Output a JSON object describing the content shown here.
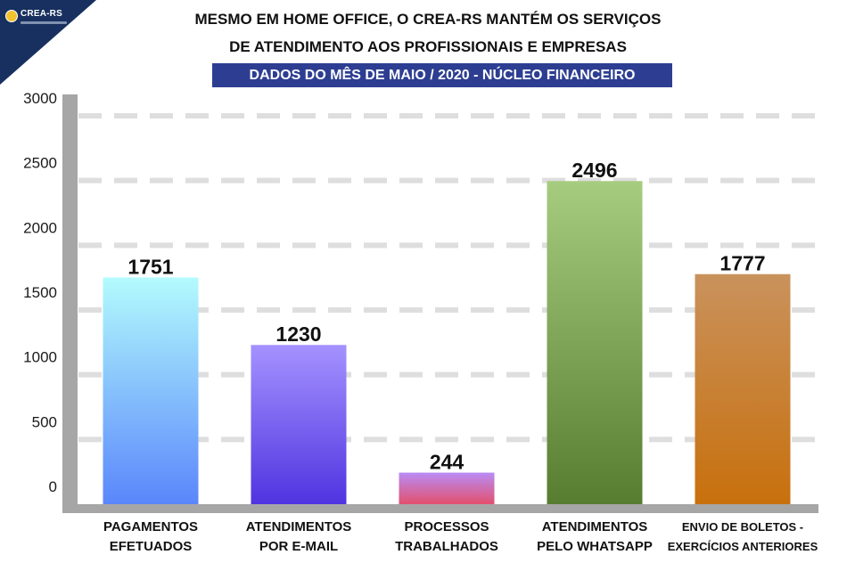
{
  "header": {
    "logo_text": "CREA-RS",
    "title_line1": "MESMO EM HOME OFFICE, O CREA-RS MANTÉM OS SERVIÇOS",
    "title_line2": "DE ATENDIMENTO AOS PROFISSIONAIS E EMPRESAS",
    "subtitle": "DADOS DO MÊS DE MAIO / 2020 - NÚCLEO FINANCEIRO"
  },
  "colors": {
    "corner": "#17305f",
    "subtitle_bg": "#2d3e92",
    "axis": "#a6a6a6",
    "grid": "#dedede"
  },
  "chart_data": {
    "type": "bar",
    "title": "DADOS DO MÊS DE MAIO / 2020 - NÚCLEO FINANCEIRO",
    "xlabel": "",
    "ylabel": "",
    "ylim": [
      0,
      3000
    ],
    "yticks": [
      0,
      500,
      1000,
      1500,
      2000,
      2500,
      3000
    ],
    "grid": true,
    "legend": "none",
    "categories": [
      [
        "PAGAMENTOS",
        "EFETUADOS"
      ],
      [
        "ATENDIMENTOS",
        "POR E-MAIL"
      ],
      [
        "PROCESSOS",
        "TRABALHADOS"
      ],
      [
        "ATENDIMENTOS",
        "PELO WHATSAPP"
      ],
      [
        "ENVIO DE BOLETOS -",
        "EXERCÍCIOS ANTERIORES"
      ]
    ],
    "values": [
      1751,
      1230,
      244,
      2496,
      1777
    ],
    "value_labels": [
      "1751",
      "1230",
      "244",
      "2496",
      "1777"
    ],
    "bar_colors": [
      [
        "#b3fbfd",
        "#5a86fb"
      ],
      [
        "#a592ff",
        "#4f34e0"
      ],
      [
        "#b98cf6",
        "#e2506d"
      ],
      [
        "#a6cc80",
        "#567d30"
      ],
      [
        "#c9925c",
        "#c8700d"
      ]
    ]
  }
}
